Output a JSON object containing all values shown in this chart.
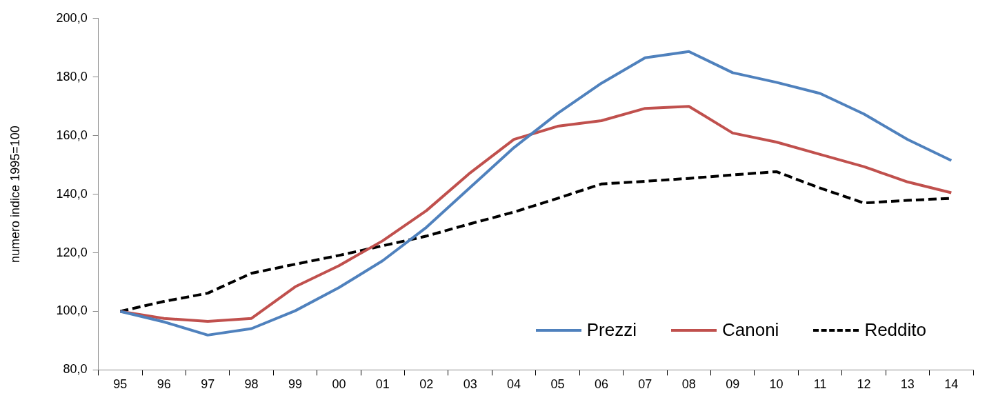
{
  "chart_data": {
    "type": "line",
    "ylabel": "numero indice 1995=100",
    "categories": [
      "95",
      "96",
      "97",
      "98",
      "99",
      "00",
      "01",
      "02",
      "03",
      "04",
      "05",
      "06",
      "07",
      "08",
      "09",
      "10",
      "11",
      "12",
      "13",
      "14"
    ],
    "series": [
      {
        "name": "Prezzi",
        "color": "#4f81bd",
        "line_style": "solid",
        "values": [
          100,
          96.4,
          91.9,
          94.1,
          100.2,
          108.1,
          117.3,
          128.7,
          142.3,
          155.9,
          167.6,
          177.9,
          186.6,
          188.7,
          181.5,
          178.2,
          174.4,
          167.4,
          158.7,
          151.5
        ]
      },
      {
        "name": "Canoni",
        "color": "#c0504d",
        "line_style": "solid",
        "values": [
          100,
          97.6,
          96.6,
          97.6,
          108.4,
          115.6,
          124.1,
          134.4,
          147.3,
          158.7,
          163.2,
          165.1,
          169.3,
          170.0,
          160.9,
          157.8,
          153.6,
          149.4,
          144.2,
          140.5
        ]
      },
      {
        "name": "Reddito",
        "color": "#000000",
        "line_style": "dashed",
        "values": [
          100,
          103.4,
          106.2,
          113.0,
          116.1,
          119.1,
          122.4,
          125.7,
          129.9,
          133.9,
          138.6,
          143.5,
          144.4,
          145.4,
          146.6,
          147.7,
          142.1,
          137.0,
          137.9,
          138.6
        ]
      }
    ],
    "ylim": [
      80,
      200
    ],
    "yticks": [
      {
        "value": 80,
        "label": "80,0"
      },
      {
        "value": 100,
        "label": "100,0"
      },
      {
        "value": 120,
        "label": "120,0"
      },
      {
        "value": 140,
        "label": "140,0"
      },
      {
        "value": 160,
        "label": "160,0"
      },
      {
        "value": 180,
        "label": "180,0"
      },
      {
        "value": 200,
        "label": "200,0"
      }
    ],
    "grid": false,
    "legend": "bottom right",
    "marker": "none"
  }
}
